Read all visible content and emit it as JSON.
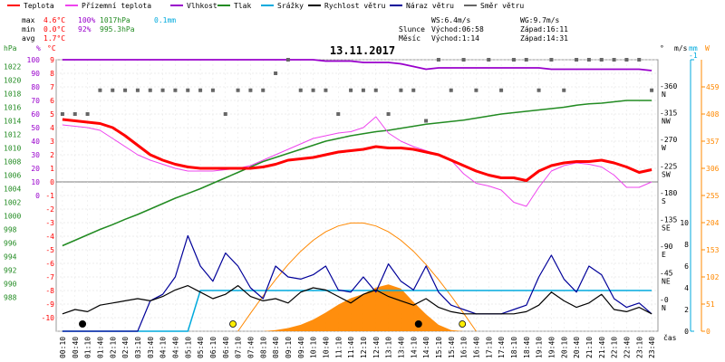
{
  "chart_data": {
    "type": "line",
    "title": "13.11.2017",
    "time_label": "čas",
    "x": [
      "00:10",
      "00:40",
      "01:10",
      "01:40",
      "02:10",
      "02:40",
      "03:10",
      "03:40",
      "04:10",
      "04:40",
      "05:10",
      "05:40",
      "06:10",
      "06:40",
      "07:10",
      "07:40",
      "08:10",
      "08:40",
      "09:10",
      "09:40",
      "10:10",
      "10:40",
      "11:10",
      "11:40",
      "12:10",
      "12:40",
      "13:10",
      "13:40",
      "14:10",
      "14:40",
      "15:10",
      "15:40",
      "16:10",
      "16:40",
      "17:10",
      "17:40",
      "18:10",
      "18:40",
      "19:10",
      "19:40",
      "20:10",
      "20:40",
      "21:10",
      "21:40",
      "22:10",
      "22:40",
      "23:10",
      "23:40"
    ],
    "legend": [
      {
        "label": "Teplota",
        "color": "#ff0000"
      },
      {
        "label": "Přízemní teplota",
        "color": "#ee44ee"
      },
      {
        "label": "Vlhkost",
        "color": "#9900cc"
      },
      {
        "label": "Tlak",
        "color": "#228b22"
      },
      {
        "label": "Srážky",
        "color": "#00aadd"
      },
      {
        "label": "Rychlost větru",
        "color": "#000000"
      },
      {
        "label": "Náraz větru",
        "color": "#000099"
      },
      {
        "label": "Směr větru",
        "color": "#666666"
      }
    ],
    "stats": {
      "max_label": "max",
      "max_temp": "4.6°C",
      "max_hum": "100%",
      "max_press": "1017hPa",
      "max_rain": "0.1mm",
      "min_label": "min",
      "min_temp": "0.0°C",
      "min_hum": "92%",
      "min_press": "995.3hPa",
      "avg_label": "avg",
      "avg_temp": "1.7°C"
    },
    "info": {
      "ws": "WS:6.4m/s",
      "wg": "WG:9.7m/s",
      "sun_label": "Slunce",
      "sunrise": "Východ:06:58",
      "sunset": "Západ:16:11",
      "moon_label": "Měsíc",
      "moonrise": "Východ:1:14",
      "moonset": "Západ:14:31"
    },
    "axes": {
      "hpa_unit": "hPa",
      "hpa_ticks": [
        988,
        990,
        992,
        994,
        996,
        998,
        1000,
        1002,
        1004,
        1006,
        1008,
        1010,
        1012,
        1014,
        1016,
        1018,
        1020,
        1022
      ],
      "pct_unit": "%",
      "pct_ticks": [
        0,
        10,
        20,
        30,
        40,
        50,
        60,
        70,
        80,
        90,
        100
      ],
      "c_unit": "°C",
      "c_ticks": [
        -10,
        -9,
        -8,
        -7,
        -6,
        -5,
        -4,
        -3,
        -2,
        -1,
        0,
        1,
        2,
        3,
        4,
        5,
        6,
        7,
        8,
        9
      ],
      "dir_unit": "°",
      "dir_ticks": [
        "-0",
        "-45",
        "-90",
        "-135",
        "-180",
        "-225",
        "-270",
        "-315",
        "-360"
      ],
      "dir_names": [
        "N",
        "NE",
        "E",
        "SE",
        "S",
        "SW",
        "W",
        "NW",
        "N"
      ],
      "ms_unit": "m/s",
      "ms_ticks": [
        0,
        2,
        4,
        6,
        8,
        10
      ],
      "mm_unit": "mm",
      "mm_ticks": [
        0,
        1
      ],
      "w_unit": "W",
      "w_ticks": [
        0,
        51,
        102,
        153,
        204,
        255,
        306,
        357,
        408,
        459
      ],
      "ms_top": "-1"
    },
    "temperature": [
      4.6,
      4.5,
      4.4,
      4.3,
      4.0,
      3.4,
      2.7,
      2.0,
      1.6,
      1.3,
      1.1,
      1.0,
      1.0,
      1.0,
      1.0,
      1.0,
      1.1,
      1.3,
      1.6,
      1.7,
      1.8,
      2.0,
      2.2,
      2.3,
      2.4,
      2.6,
      2.5,
      2.5,
      2.4,
      2.2,
      2.0,
      1.6,
      1.2,
      0.8,
      0.5,
      0.3,
      0.3,
      0.1,
      0.8,
      1.2,
      1.4,
      1.5,
      1.5,
      1.6,
      1.4,
      1.1,
      0.7,
      0.9
    ],
    "ground_temperature": [
      4.2,
      4.1,
      4.0,
      3.8,
      3.2,
      2.6,
      2.0,
      1.6,
      1.3,
      1.0,
      0.8,
      0.8,
      0.8,
      0.9,
      1.0,
      1.2,
      1.6,
      2.0,
      2.4,
      2.8,
      3.2,
      3.4,
      3.6,
      3.7,
      4.0,
      4.8,
      3.6,
      3.0,
      2.6,
      2.3,
      2.0,
      1.6,
      0.6,
      -0.1,
      -0.3,
      -0.6,
      -1.5,
      -1.8,
      -0.4,
      0.8,
      1.2,
      1.4,
      1.3,
      1.1,
      0.5,
      -0.4,
      -0.4,
      0.0
    ],
    "humidity": [
      100,
      100,
      100,
      100,
      100,
      100,
      100,
      100,
      100,
      100,
      100,
      100,
      100,
      100,
      100,
      100,
      100,
      100,
      100,
      100,
      100,
      99,
      99,
      99,
      98,
      98,
      98,
      97,
      95,
      93,
      94,
      94,
      94,
      94,
      94,
      94,
      94,
      94,
      94,
      93,
      93,
      93,
      93,
      93,
      93,
      93,
      93,
      92
    ],
    "pressure": [
      995.6,
      996.4,
      997.2,
      998.0,
      998.7,
      999.5,
      1000.2,
      1001.0,
      1001.8,
      1002.6,
      1003.3,
      1004.0,
      1004.8,
      1005.6,
      1006.4,
      1007.2,
      1008.0,
      1008.6,
      1009.2,
      1009.8,
      1010.4,
      1011.0,
      1011.4,
      1011.8,
      1012.1,
      1012.4,
      1012.6,
      1012.9,
      1013.2,
      1013.5,
      1013.7,
      1013.9,
      1014.1,
      1014.4,
      1014.7,
      1015.0,
      1015.2,
      1015.4,
      1015.6,
      1015.8,
      1016.0,
      1016.3,
      1016.5,
      1016.6,
      1016.8,
      1017.0,
      1017.0,
      1017.0
    ],
    "rain_mm": [
      0,
      0,
      0,
      0,
      0,
      0,
      0,
      0,
      0,
      0,
      0,
      0.1,
      0.1,
      0.1,
      0.1,
      0.1,
      0.1,
      0.1,
      0.1,
      0.1,
      0.1,
      0.1,
      0.1,
      0.1,
      0.1,
      0.1,
      0.1,
      0.1,
      0.1,
      0.1,
      0.1,
      0.1,
      0.1,
      0.1,
      0.1,
      0.1,
      0.1,
      0.1,
      0.1,
      0.1,
      0.1,
      0.1,
      0.1,
      0.1,
      0.1,
      0.1,
      0.1,
      0.1
    ],
    "wind_speed": [
      1.6,
      2.0,
      1.8,
      2.4,
      2.6,
      2.8,
      3.0,
      2.8,
      3.2,
      3.8,
      4.2,
      3.6,
      3.0,
      3.4,
      4.2,
      3.2,
      2.8,
      3.0,
      2.6,
      3.6,
      4.0,
      3.8,
      3.2,
      2.6,
      3.4,
      3.8,
      3.2,
      2.8,
      2.4,
      3.0,
      2.2,
      1.8,
      1.6,
      1.6,
      1.6,
      1.6,
      1.6,
      1.8,
      2.4,
      3.6,
      2.8,
      2.2,
      2.6,
      3.4,
      2.0,
      1.8,
      2.2,
      1.6
    ],
    "wind_gust": [
      0,
      0,
      0,
      0,
      0,
      0,
      0,
      2.8,
      3.4,
      5.0,
      8.8,
      6.0,
      4.6,
      7.2,
      6.0,
      4.0,
      3.0,
      6.0,
      5.0,
      4.8,
      5.2,
      6.0,
      3.8,
      3.6,
      5.0,
      3.6,
      6.2,
      4.6,
      3.8,
      6.0,
      3.6,
      2.4,
      2.0,
      1.6,
      1.6,
      1.6,
      2.0,
      2.4,
      5.0,
      7.0,
      4.8,
      3.6,
      6.0,
      5.2,
      3.0,
      2.2,
      2.6,
      1.6
    ],
    "wind_dir_deg": [
      280,
      280,
      280,
      315,
      315,
      315,
      315,
      315,
      315,
      315,
      315,
      315,
      315,
      280,
      315,
      315,
      315,
      340,
      360,
      315,
      315,
      315,
      280,
      315,
      315,
      315,
      280,
      315,
      315,
      270,
      360,
      315,
      360,
      315,
      360,
      315,
      360,
      360,
      315,
      360,
      315,
      360,
      360,
      360,
      360,
      360,
      360,
      315
    ],
    "solar_w": [
      0,
      0,
      0,
      0,
      0,
      0,
      0,
      0,
      0,
      0,
      0,
      0,
      0,
      0,
      0,
      0,
      0,
      2,
      6,
      12,
      22,
      35,
      50,
      62,
      70,
      82,
      88,
      80,
      55,
      32,
      12,
      2,
      0,
      0,
      0,
      0,
      0,
      0,
      0,
      0,
      0,
      0,
      0,
      0,
      0,
      0,
      0,
      0
    ]
  }
}
